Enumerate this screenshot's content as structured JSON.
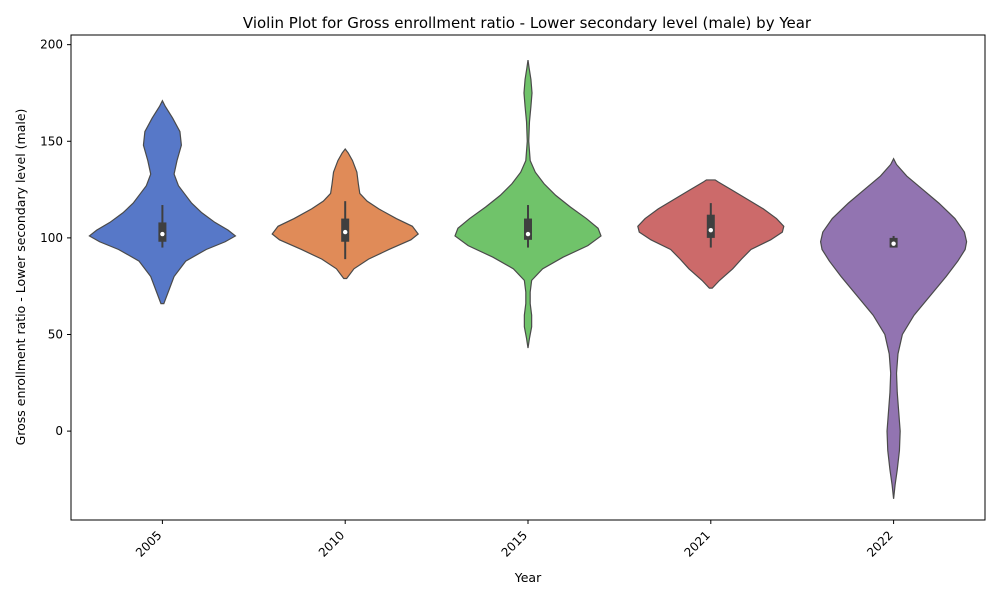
{
  "chart_data": {
    "type": "violin",
    "title": "Violin Plot for Gross enrollment ratio - Lower secondary level (male) by Year",
    "xlabel": "Year",
    "ylabel": "Gross enrollment ratio - Lower secondary level (male)",
    "ylim": [
      -46,
      205
    ],
    "yticks": [
      0,
      50,
      100,
      150,
      200
    ],
    "grid": false,
    "categories": [
      "2005",
      "2010",
      "2015",
      "2021",
      "2022"
    ],
    "colors": [
      "#5778c8",
      "#e08b58",
      "#70c36a",
      "#cc6a6a",
      "#9274b1"
    ],
    "violins": [
      {
        "category": "2005",
        "profile": [
          [
            66,
            0.02
          ],
          [
            72,
            0.08
          ],
          [
            80,
            0.16
          ],
          [
            88,
            0.32
          ],
          [
            94,
            0.6
          ],
          [
            98,
            0.86
          ],
          [
            101,
            1.0
          ],
          [
            104,
            0.9
          ],
          [
            108,
            0.72
          ],
          [
            113,
            0.54
          ],
          [
            118,
            0.4
          ],
          [
            123,
            0.3
          ],
          [
            127,
            0.22
          ],
          [
            133,
            0.16
          ],
          [
            140,
            0.2
          ],
          [
            148,
            0.26
          ],
          [
            155,
            0.24
          ],
          [
            162,
            0.14
          ],
          [
            168,
            0.04
          ],
          [
            171,
            0.0
          ]
        ],
        "box": {
          "q1": 98,
          "median": 102,
          "q3": 108,
          "whisker_low": 95,
          "whisker_high": 117
        }
      },
      {
        "category": "2010",
        "profile": [
          [
            79,
            0.02
          ],
          [
            84,
            0.12
          ],
          [
            89,
            0.32
          ],
          [
            94,
            0.6
          ],
          [
            99,
            0.9
          ],
          [
            102,
            1.0
          ],
          [
            106,
            0.92
          ],
          [
            110,
            0.7
          ],
          [
            115,
            0.46
          ],
          [
            119,
            0.3
          ],
          [
            123,
            0.2
          ],
          [
            128,
            0.18
          ],
          [
            134,
            0.16
          ],
          [
            140,
            0.1
          ],
          [
            144,
            0.04
          ],
          [
            146,
            0.0
          ]
        ],
        "box": {
          "q1": 98,
          "median": 103,
          "q3": 110,
          "whisker_low": 89,
          "whisker_high": 119
        }
      },
      {
        "category": "2015",
        "profile": [
          [
            43,
            0.0
          ],
          [
            48,
            0.02
          ],
          [
            54,
            0.05
          ],
          [
            60,
            0.05
          ],
          [
            66,
            0.03
          ],
          [
            72,
            0.03
          ],
          [
            78,
            0.05
          ],
          [
            84,
            0.2
          ],
          [
            90,
            0.48
          ],
          [
            96,
            0.82
          ],
          [
            101,
            1.0
          ],
          [
            105,
            0.96
          ],
          [
            110,
            0.8
          ],
          [
            116,
            0.58
          ],
          [
            122,
            0.38
          ],
          [
            128,
            0.22
          ],
          [
            134,
            0.1
          ],
          [
            140,
            0.03
          ],
          [
            150,
            0.01
          ],
          [
            160,
            0.02
          ],
          [
            168,
            0.04
          ],
          [
            175,
            0.055
          ],
          [
            182,
            0.04
          ],
          [
            188,
            0.015
          ],
          [
            192,
            0.0
          ]
        ],
        "box": {
          "q1": 99,
          "median": 102,
          "q3": 110,
          "whisker_low": 95,
          "whisker_high": 117
        }
      },
      {
        "category": "2021",
        "profile": [
          [
            74,
            0.02
          ],
          [
            78,
            0.12
          ],
          [
            84,
            0.3
          ],
          [
            89,
            0.42
          ],
          [
            94,
            0.55
          ],
          [
            99,
            0.82
          ],
          [
            103,
            0.98
          ],
          [
            106,
            1.0
          ],
          [
            110,
            0.9
          ],
          [
            115,
            0.72
          ],
          [
            120,
            0.5
          ],
          [
            125,
            0.28
          ],
          [
            129,
            0.1
          ],
          [
            130,
            0.06
          ]
        ],
        "box": {
          "q1": 100,
          "median": 104,
          "q3": 112,
          "whisker_low": 95,
          "whisker_high": 118
        }
      },
      {
        "category": "2022",
        "profile": [
          [
            -35,
            0.0
          ],
          [
            -28,
            0.02
          ],
          [
            -20,
            0.05
          ],
          [
            -10,
            0.08
          ],
          [
            0,
            0.09
          ],
          [
            10,
            0.07
          ],
          [
            20,
            0.05
          ],
          [
            30,
            0.04
          ],
          [
            40,
            0.06
          ],
          [
            50,
            0.12
          ],
          [
            60,
            0.28
          ],
          [
            70,
            0.5
          ],
          [
            80,
            0.72
          ],
          [
            88,
            0.88
          ],
          [
            94,
            0.98
          ],
          [
            98,
            1.0
          ],
          [
            103,
            0.97
          ],
          [
            110,
            0.84
          ],
          [
            118,
            0.62
          ],
          [
            125,
            0.4
          ],
          [
            132,
            0.18
          ],
          [
            138,
            0.04
          ],
          [
            141,
            0.0
          ]
        ],
        "box": {
          "q1": 95,
          "median": 97,
          "q3": 100,
          "whisker_low": 95,
          "whisker_high": 101
        }
      }
    ]
  }
}
